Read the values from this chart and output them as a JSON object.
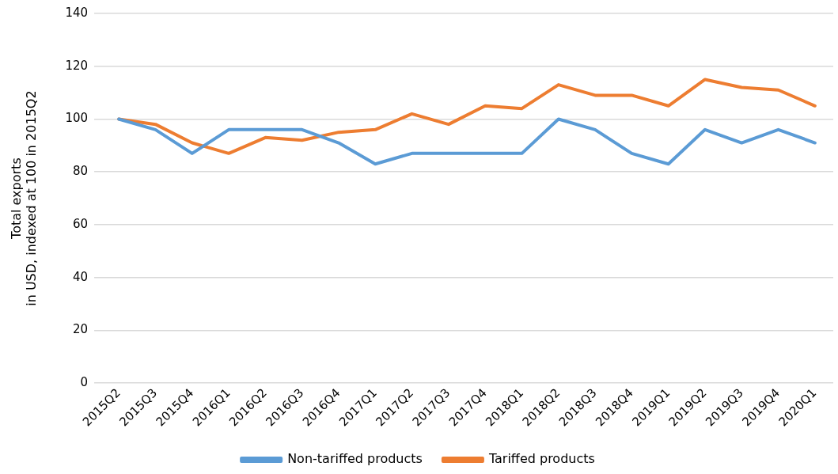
{
  "chart_data": {
    "type": "line",
    "ylabel": "Total exports\nin USD, indexed at 100 in 2015Q2",
    "categories": [
      "2015Q2",
      "2015Q3",
      "2015Q4",
      "2016Q1",
      "2016Q2",
      "2016Q3",
      "2016Q4",
      "2017Q1",
      "2017Q2",
      "2017Q3",
      "2017Q4",
      "2018Q1",
      "2018Q2",
      "2018Q3",
      "2018Q4",
      "2019Q1",
      "2019Q2",
      "2019Q3",
      "2019Q4",
      "2020Q1"
    ],
    "series": [
      {
        "name": "Non-tariffed products",
        "color": "#5b9bd5",
        "values": [
          100,
          96,
          87,
          96,
          96,
          96,
          91,
          83,
          87,
          87,
          87,
          87,
          100,
          96,
          87,
          83,
          96,
          91,
          96,
          91
        ]
      },
      {
        "name": "Tariffed products",
        "color": "#ed7d31",
        "values": [
          100,
          98,
          91,
          87,
          93,
          92,
          95,
          96,
          102,
          98,
          105,
          104,
          113,
          109,
          109,
          105,
          115,
          112,
          111,
          105
        ]
      }
    ],
    "ylim": [
      0,
      140
    ],
    "yticks": [
      0,
      20,
      40,
      60,
      80,
      100,
      120,
      140
    ],
    "grid": "y",
    "legend": "bottom",
    "marker": "none",
    "line_style": "solid"
  }
}
